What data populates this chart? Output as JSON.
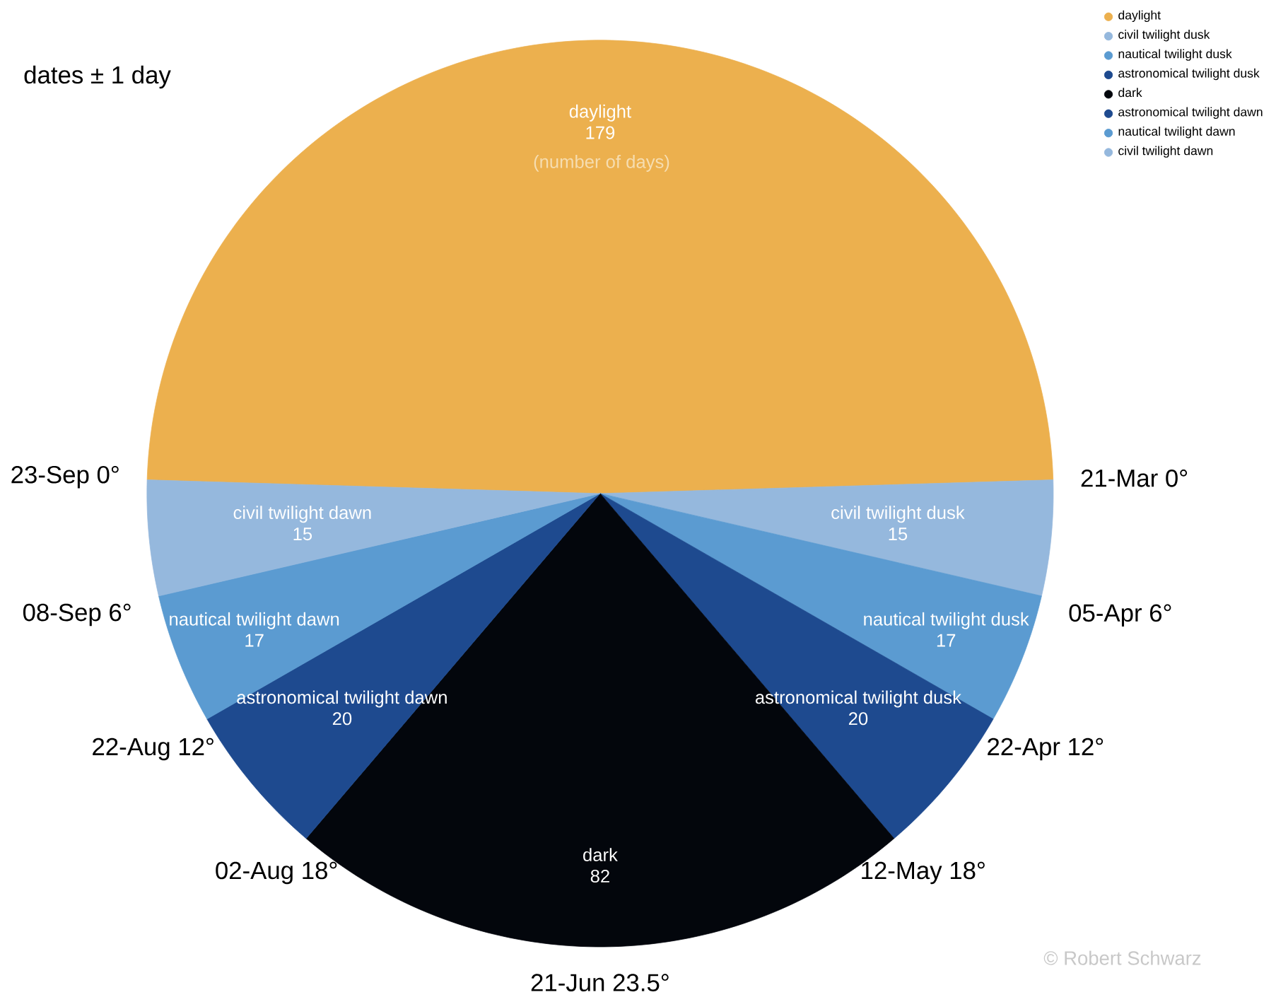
{
  "chart_data": {
    "type": "pie",
    "categories": [
      "daylight",
      "civil twilight dusk",
      "nautical twilight dusk",
      "astronomical twilight dusk",
      "dark",
      "astronomical twilight dawn",
      "nautical twilight dawn",
      "civil twilight dawn"
    ],
    "values": [
      179,
      15,
      17,
      20,
      82,
      20,
      17,
      15
    ],
    "colors": [
      "#ecb04e",
      "#95b8dd",
      "#5b9bd1",
      "#1e4a8f",
      "#03060c",
      "#1e4a8f",
      "#5b9bd1",
      "#95b8dd"
    ],
    "data_labels": true,
    "legend": "top right",
    "annotations": [
      "dates ± 1 day",
      "(number of days)",
      "© Robert Schwarz",
      "21-Mar  0°",
      "05-Apr   6°",
      "22-Apr  12°",
      "12-May  18°",
      "21-Jun  23.5°",
      "02-Aug  18°",
      "22-Aug  12°",
      "08-Sep  6°",
      "23-Sep  0°"
    ]
  }
}
